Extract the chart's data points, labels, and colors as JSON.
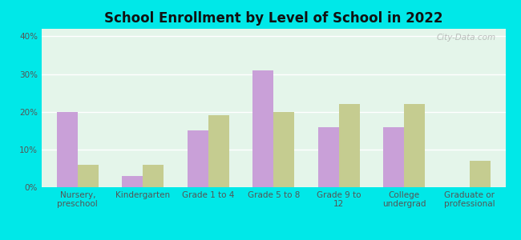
{
  "title": "School Enrollment by Level of School in 2022",
  "categories": [
    "Nursery,\npreschool",
    "Kindergarten",
    "Grade 1 to 4",
    "Grade 5 to 8",
    "Grade 9 to\n12",
    "College\nundergrad",
    "Graduate or\nprofessional"
  ],
  "zip_values": [
    20,
    3,
    15,
    31,
    16,
    16,
    0
  ],
  "va_values": [
    6,
    6,
    19,
    20,
    22,
    22,
    7
  ],
  "zip_color": "#c9a0d8",
  "va_color": "#c5cc90",
  "background_outer": "#00e8e8",
  "background_inner_tl": "#e8f8ee",
  "background_inner_br": "#d0f0d8",
  "ylim": [
    0,
    42
  ],
  "yticks": [
    0,
    10,
    20,
    30,
    40
  ],
  "ytick_labels": [
    "0%",
    "10%",
    "20%",
    "30%",
    "40%"
  ],
  "watermark": "City-Data.com",
  "bar_width": 0.32,
  "title_fontsize": 12,
  "tick_fontsize": 7.5,
  "legend_fontsize": 8.5,
  "axis_label_color": "#555555",
  "grid_color": "#ffffff"
}
